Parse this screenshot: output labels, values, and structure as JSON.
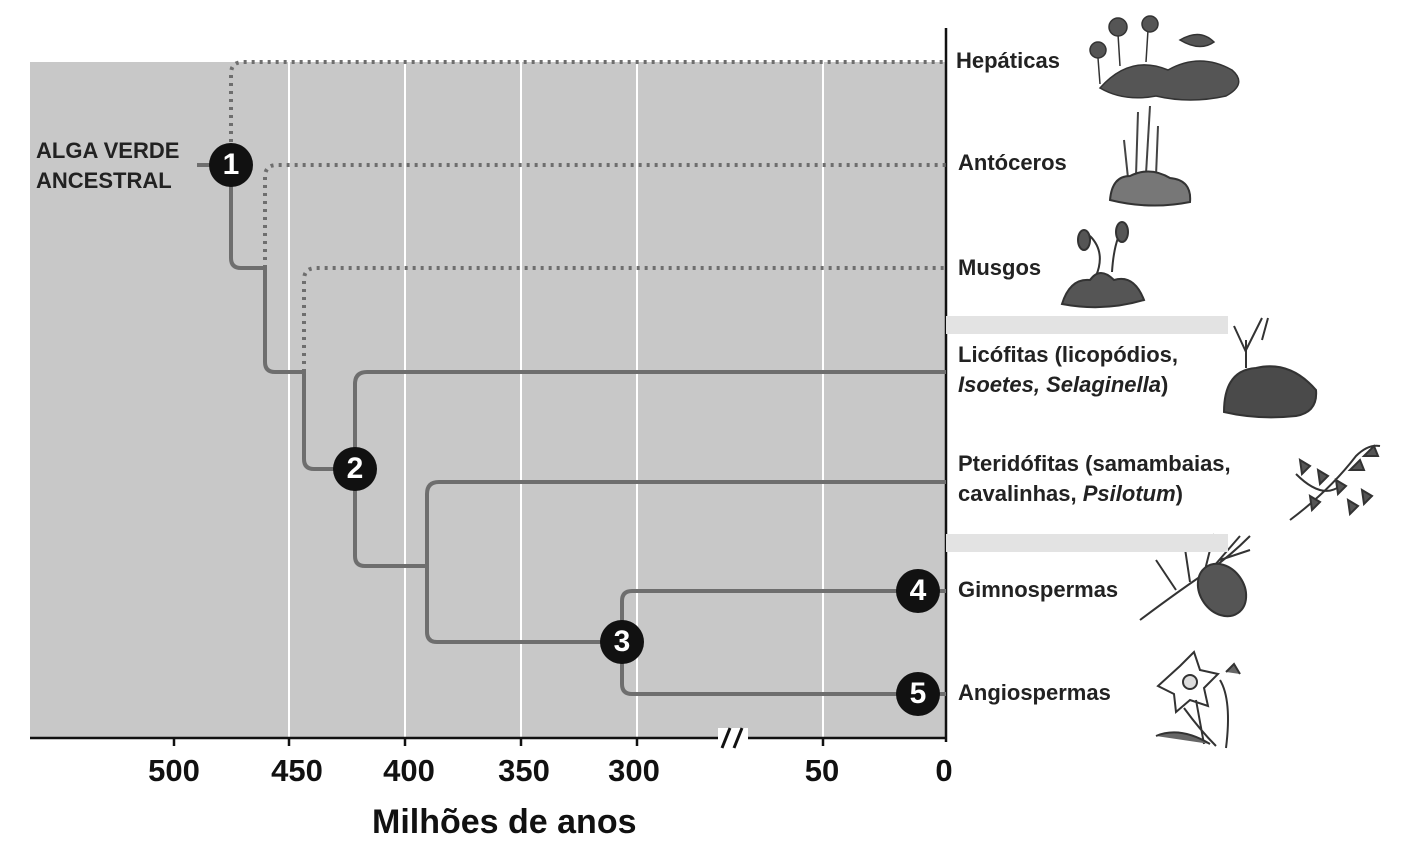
{
  "diagram": {
    "root_label": [
      "ALGA VERDE",
      "ANCESTRAL"
    ],
    "x_axis": {
      "title": "Milhões de anos",
      "ticks": [
        "500",
        "450",
        "400",
        "350",
        "300",
        "50",
        "0"
      ],
      "break_symbol": "//"
    },
    "nodes": [
      "1",
      "2",
      "3",
      "4",
      "5"
    ],
    "taxa": [
      {
        "name": "Hepáticas"
      },
      {
        "name": "Antóceros"
      },
      {
        "name": "Musgos"
      },
      {
        "name_plain": "Licófitas (licopódios,",
        "line2_italic_1": "Isoetes",
        "line2_sep": ", ",
        "line2_italic_2": "Selaginella",
        "line2_end": ")"
      },
      {
        "name_plain": "Pteridófitas (samambaias,",
        "line2_plain": "cavalinhas, ",
        "line2_italic": "Psilotum",
        "line2_end": ")"
      },
      {
        "name": "Gimnospermas"
      },
      {
        "name": "Angiospermas"
      }
    ],
    "colors": {
      "plot_background": "#c8c8c8",
      "branch": "#6e6e6e",
      "grid": "#ffffff",
      "node_fill": "#111111",
      "separator": "#e3e3e3"
    },
    "icons": [
      "liverwort-icon",
      "hornwort-icon",
      "moss-icon",
      "lycophyte-icon",
      "fern-icon",
      "pine-branch-icon",
      "daffodil-icon"
    ]
  }
}
